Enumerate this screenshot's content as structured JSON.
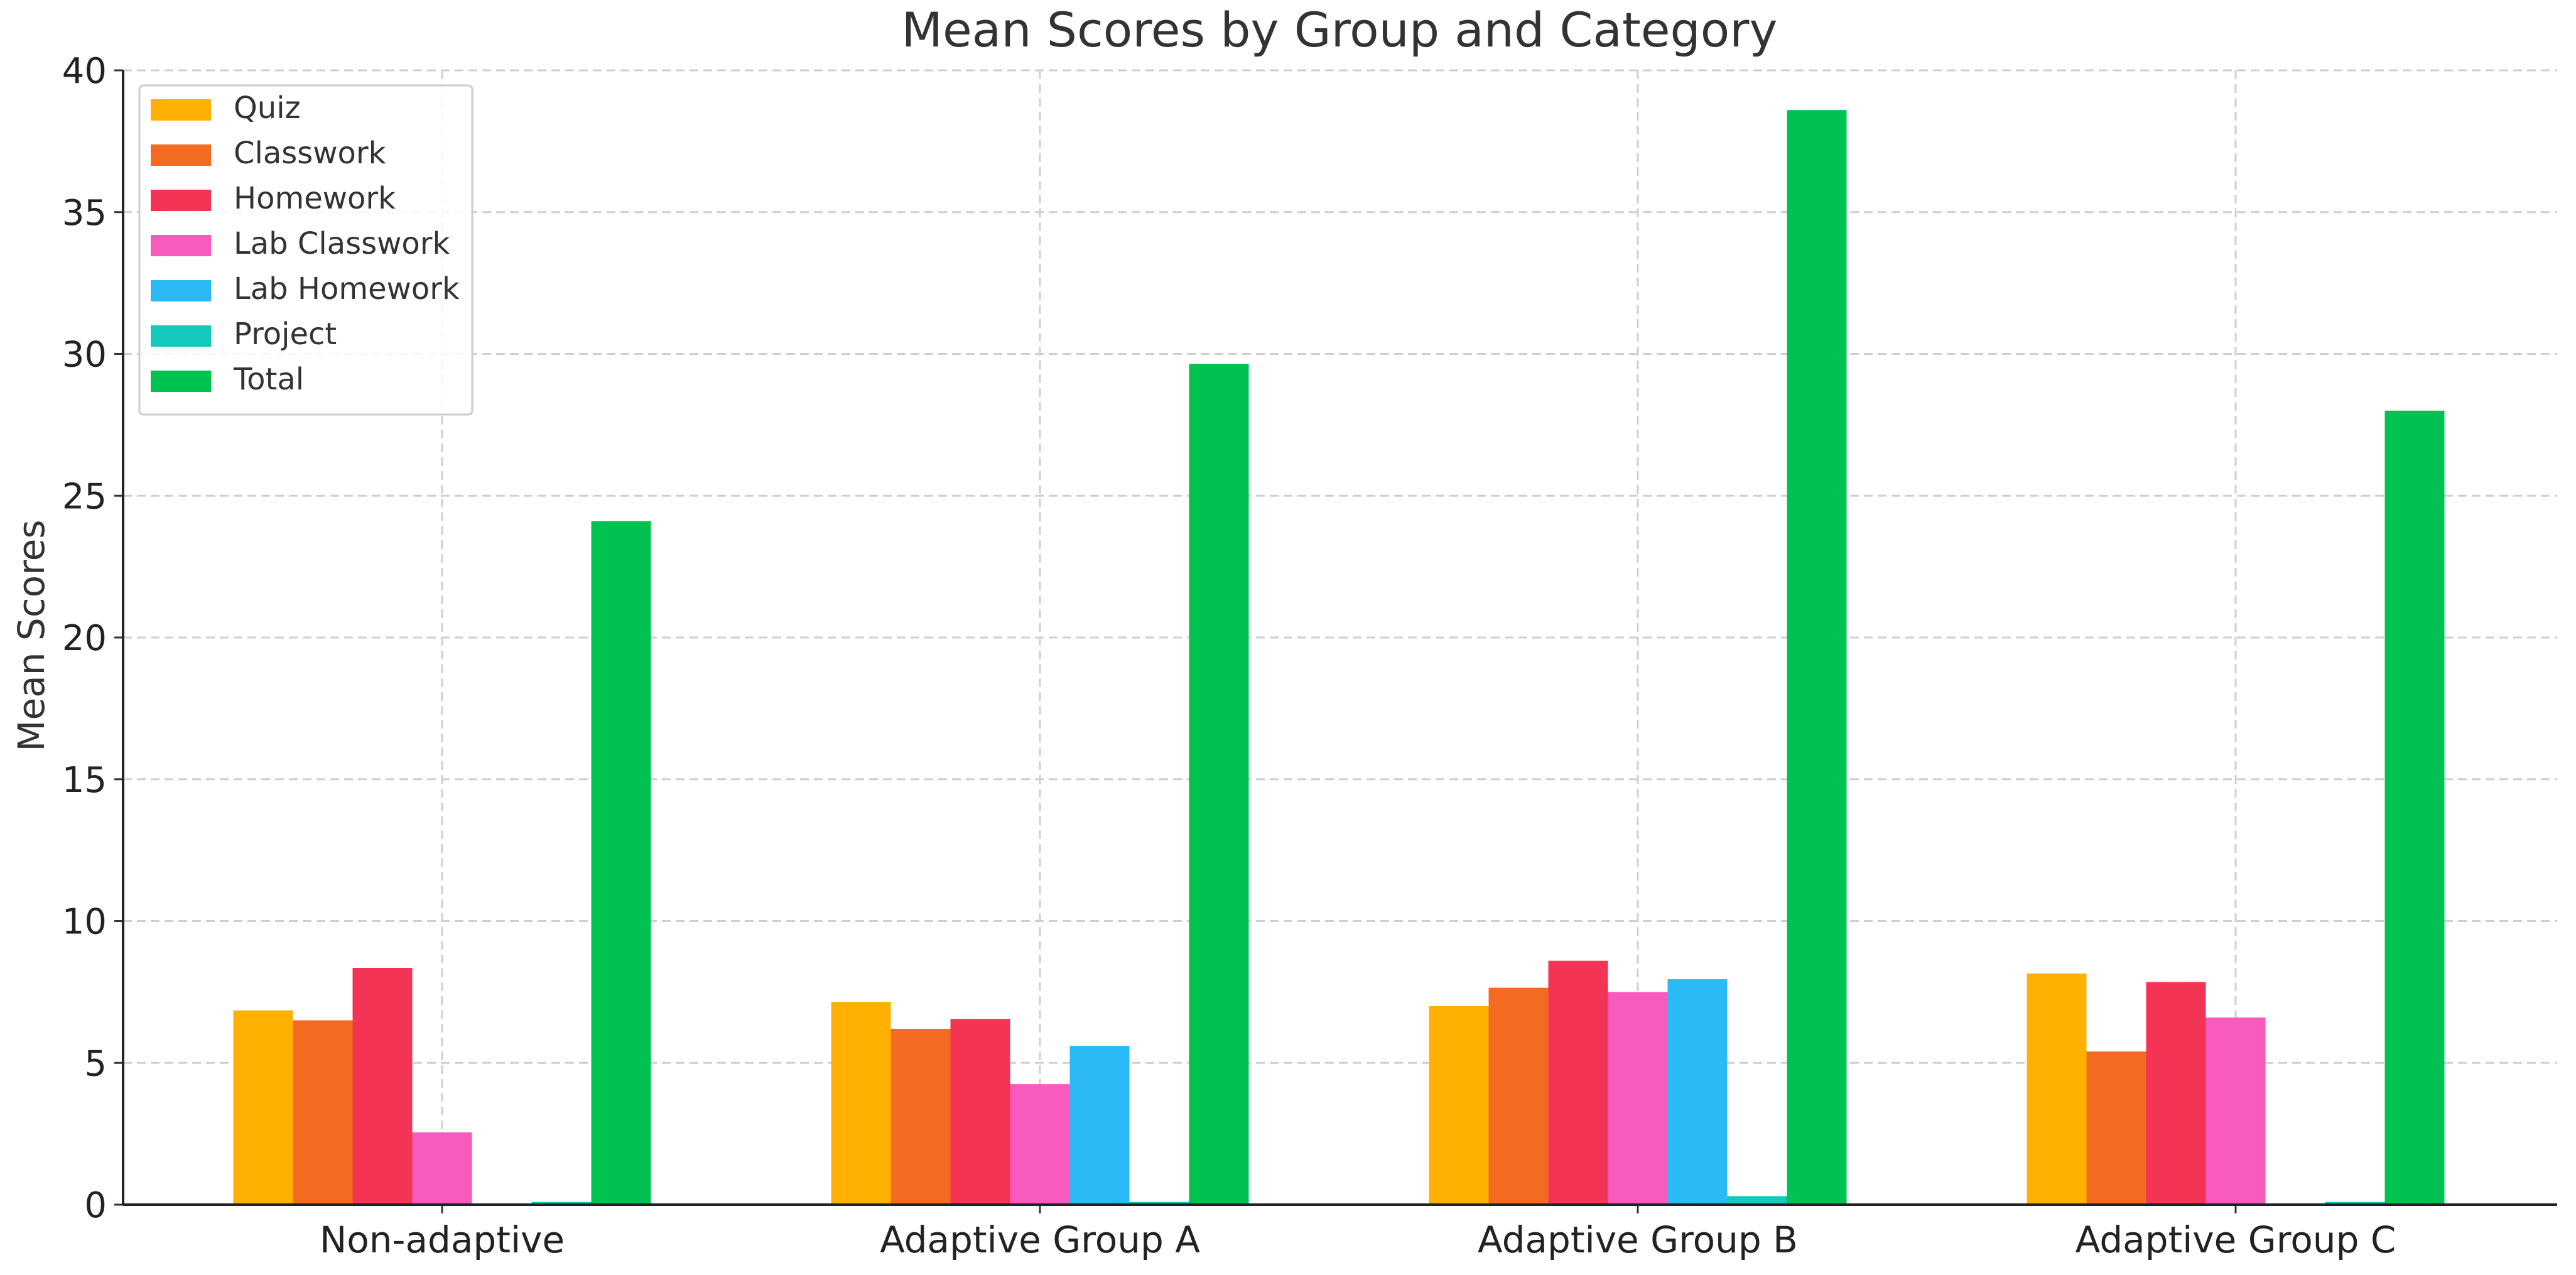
{
  "chart_data": {
    "type": "bar",
    "title": "Mean Scores by Group and Category",
    "xlabel": "",
    "ylabel": "Mean Scores",
    "ylim": [
      0,
      40
    ],
    "yticks": [
      0,
      5,
      10,
      15,
      20,
      25,
      30,
      35,
      40
    ],
    "grid": true,
    "legend_position": "top-left",
    "categories": [
      "Non-adaptive",
      "Adaptive Group A",
      "Adaptive Group B",
      "Adaptive Group C"
    ],
    "series": [
      {
        "name": "Quiz",
        "color": "#FFB000",
        "values": [
          6.85,
          7.15,
          7.0,
          8.15
        ]
      },
      {
        "name": "Classwork",
        "color": "#F26B21",
        "values": [
          6.5,
          6.2,
          7.65,
          5.4
        ]
      },
      {
        "name": "Homework",
        "color": "#F43454",
        "values": [
          8.35,
          6.55,
          8.6,
          7.85
        ]
      },
      {
        "name": "Lab Classwork",
        "color": "#F85ABE",
        "values": [
          2.55,
          4.25,
          7.5,
          6.6
        ]
      },
      {
        "name": "Lab Homework",
        "color": "#2ABBF7",
        "values": [
          0,
          5.6,
          7.95,
          0
        ]
      },
      {
        "name": "Project",
        "color": "#12C9BB",
        "values": [
          0.1,
          0.1,
          0.3,
          0.1
        ]
      },
      {
        "name": "Total",
        "color": "#00C250",
        "values": [
          24.1,
          29.65,
          38.6,
          28.0
        ]
      }
    ]
  }
}
